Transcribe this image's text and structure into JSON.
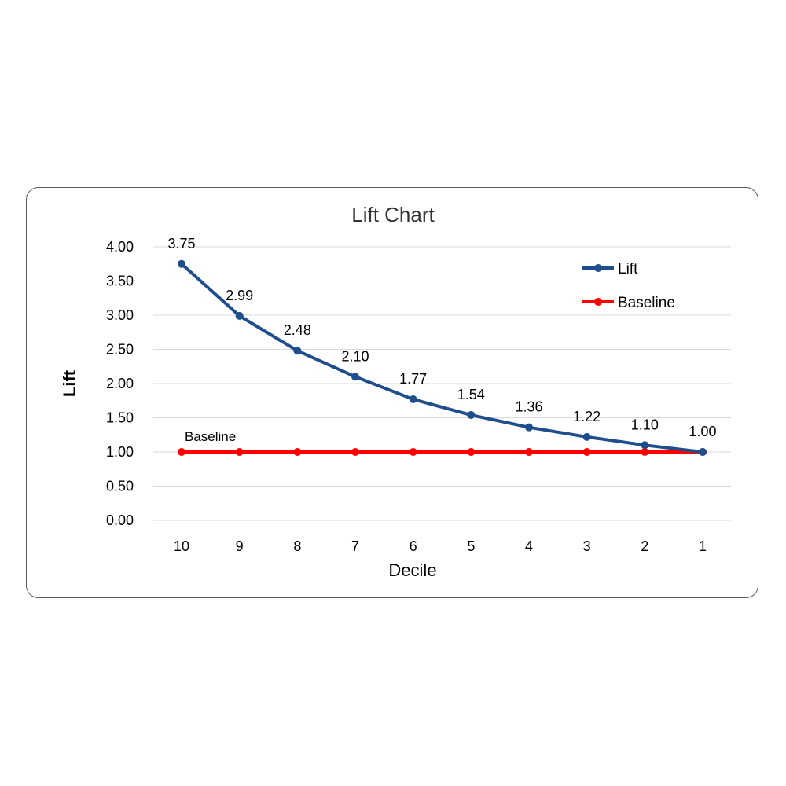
{
  "chart_data": {
    "type": "line",
    "title": "Lift Chart",
    "xlabel": "Decile",
    "ylabel": "Lift",
    "categories": [
      "10",
      "9",
      "8",
      "7",
      "6",
      "5",
      "4",
      "3",
      "2",
      "1"
    ],
    "ylim": [
      0,
      4
    ],
    "yticks": [
      "0.00",
      "0.50",
      "1.00",
      "1.50",
      "2.00",
      "2.50",
      "3.00",
      "3.50",
      "4.00"
    ],
    "grid": true,
    "legend_position": "top-right",
    "series": [
      {
        "name": "Lift",
        "color": "#1F4E8C",
        "values": [
          3.75,
          2.99,
          2.48,
          2.1,
          1.77,
          1.54,
          1.36,
          1.22,
          1.1,
          1.0
        ],
        "labels": [
          "3.75",
          "2.99",
          "2.48",
          "2.10",
          "1.77",
          "1.54",
          "1.36",
          "1.22",
          "1.10",
          "1.00"
        ]
      },
      {
        "name": "Baseline",
        "color": "#FF0000",
        "values": [
          1,
          1,
          1,
          1,
          1,
          1,
          1,
          1,
          1,
          1
        ]
      }
    ],
    "annotation": "Baseline"
  }
}
